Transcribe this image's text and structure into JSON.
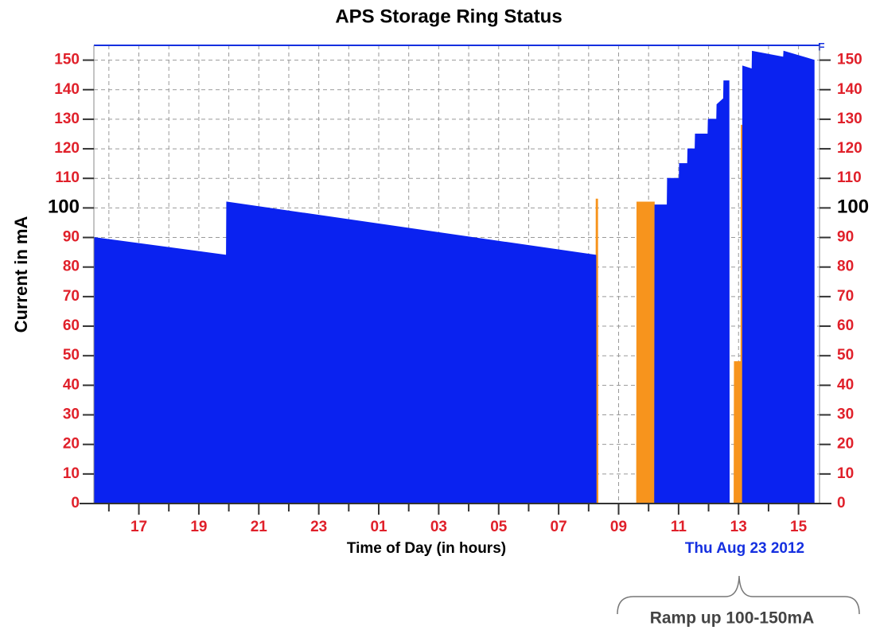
{
  "chart_data": {
    "type": "area",
    "title": "APS Storage Ring Status",
    "ylabel": "Current in mA",
    "xlabel": "Time of Day (in hours)",
    "date_label": "Thu Aug 23 2012",
    "corner_label": "F",
    "annotation": "Ramp up 100-150mA",
    "xlim": [
      15.5,
      39.7
    ],
    "ylim": [
      0,
      155
    ],
    "xticks": [
      17,
      19,
      21,
      23,
      {
        "value": 25,
        "label": "01"
      },
      {
        "value": 27,
        "label": "03"
      },
      {
        "value": 29,
        "label": "05"
      },
      {
        "value": 31,
        "label": "07"
      },
      {
        "value": 33,
        "label": "09"
      },
      {
        "value": 35,
        "label": "11"
      },
      {
        "value": 37,
        "label": "13"
      },
      {
        "value": 39,
        "label": "15"
      }
    ],
    "xminorticks": [
      16,
      18,
      20,
      22,
      24,
      26,
      28,
      30,
      32,
      34,
      36,
      38
    ],
    "yticks": [
      0,
      10,
      20,
      30,
      40,
      50,
      60,
      70,
      80,
      90,
      100,
      110,
      120,
      130,
      140,
      150
    ],
    "bold_ytick": 100,
    "grid": true,
    "series": [
      {
        "color": "#f7941d",
        "x": [
          32.24,
          32.25,
          32.3,
          32.31,
          33.6,
          33.61,
          34.19,
          34.2,
          36.85,
          36.86,
          37.08,
          37.09,
          37.12,
          37.13
        ],
        "values": [
          0,
          103,
          103,
          0,
          0,
          102,
          102,
          0,
          0,
          48,
          48,
          128,
          128,
          0
        ]
      },
      {
        "color": "#0a22f0",
        "x": [
          15.5,
          19.92,
          19.93,
          32.24,
          32.25,
          34.2,
          34.21,
          34.62,
          34.63,
          35.02,
          35.03,
          35.3,
          35.31,
          35.55,
          35.56,
          35.98,
          35.99,
          36.27,
          36.28,
          36.5,
          36.51,
          36.68,
          36.69,
          37.13,
          37.14,
          37.45,
          37.46,
          38.5,
          38.51,
          39.52
        ],
        "values": [
          90,
          84,
          102,
          84,
          0,
          0,
          101,
          101,
          110,
          110,
          115,
          115,
          120,
          120,
          125,
          125,
          130,
          130,
          135,
          137,
          143,
          143,
          0,
          0,
          148,
          147,
          153,
          151,
          153,
          150
        ]
      }
    ]
  }
}
